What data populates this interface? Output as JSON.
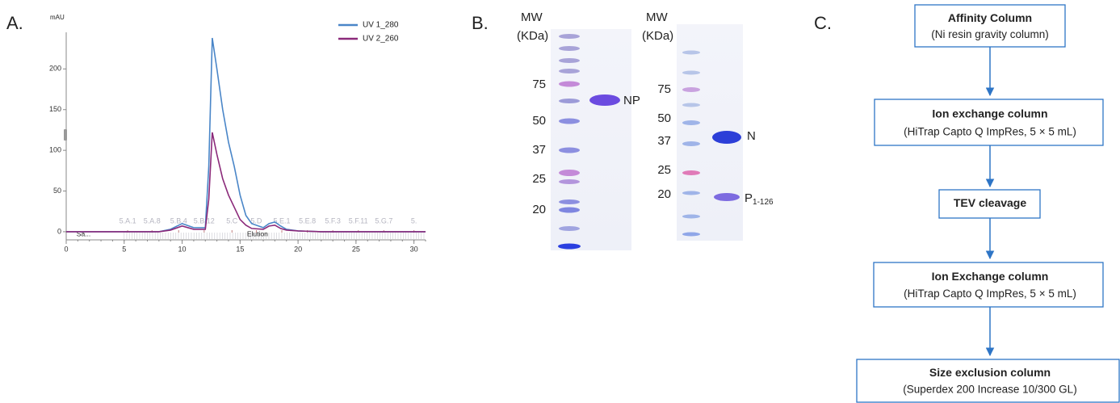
{
  "panels": {
    "a": "A.",
    "b": "B.",
    "c": "C."
  },
  "chart_data": {
    "type": "line",
    "y_label": "mAU",
    "x": [
      0,
      8,
      9,
      10,
      11,
      12,
      12.3,
      12.6,
      13,
      13.5,
      14,
      14.5,
      15,
      15.5,
      16,
      17,
      17.5,
      18,
      18.5,
      19,
      20,
      22,
      31
    ],
    "series": [
      {
        "name": "UV 1_280",
        "color": "#4a86c8",
        "values": [
          0,
          0,
          3,
          10,
          5,
          5,
          80,
          238,
          200,
          150,
          110,
          80,
          45,
          20,
          10,
          5,
          10,
          12,
          7,
          3,
          1,
          0,
          0
        ]
      },
      {
        "name": "UV 2_260",
        "color": "#8b2a7a",
        "values": [
          0,
          0,
          2,
          7,
          3,
          3,
          40,
          122,
          95,
          65,
          45,
          30,
          15,
          8,
          4,
          3,
          7,
          8,
          4,
          2,
          1,
          0,
          0
        ]
      }
    ],
    "xlim": [
      0,
      31
    ],
    "xticks": [
      0,
      5,
      10,
      15,
      20,
      25,
      30
    ],
    "ylim": [
      -10,
      245
    ],
    "yticks": [
      0,
      50,
      100,
      150,
      200
    ],
    "fractions": [
      {
        "value": 5.3,
        "label": "5.A.1"
      },
      {
        "value": 7.4,
        "label": "5.A.8"
      },
      {
        "value": 9.7,
        "label": "5.B.4"
      },
      {
        "value": 11.9,
        "label": "5.B.12"
      },
      {
        "value": 14.3,
        "label": "5.C"
      },
      {
        "value": 16.4,
        "label": "5.D"
      },
      {
        "value": 18.6,
        "label": "5.E.1"
      },
      {
        "value": 20.8,
        "label": "5.E.8"
      },
      {
        "value": 23.0,
        "label": "5.F.3"
      },
      {
        "value": 25.2,
        "label": "5.F.11"
      },
      {
        "value": 27.4,
        "label": "5.G.7"
      },
      {
        "value": 30.0,
        "label": "5."
      }
    ],
    "annotations": [
      {
        "value": 1.5,
        "label": "Sa..."
      },
      {
        "value": 16.5,
        "label": "Elution"
      }
    ],
    "legend": "upper right"
  },
  "gels": [
    {
      "header": [
        "MW",
        "(KDa)"
      ],
      "markers": [
        75,
        50,
        37,
        25,
        20
      ],
      "bands": [
        {
          "main": "NP"
        }
      ]
    },
    {
      "header": [
        "MW",
        "(KDa)"
      ],
      "markers": [
        75,
        50,
        37,
        25,
        20
      ],
      "bands": [
        {
          "main": "N"
        },
        {
          "main": "P",
          "sub": "1-126"
        }
      ]
    }
  ],
  "flowchart": {
    "steps": [
      {
        "title": "Affinity Column",
        "detail": "(Ni resin gravity column)"
      },
      {
        "title": "Ion exchange column",
        "detail": "(HiTrap Capto Q ImpRes, 5 × 5 mL)"
      },
      {
        "title": "TEV cleavage"
      },
      {
        "title": "Ion Exchange column",
        "detail": "(HiTrap Capto Q ImpRes, 5 × 5 mL)"
      },
      {
        "title": "Size exclusion column",
        "detail": "(Superdex 200 Increase 10/300 GL)"
      }
    ]
  }
}
